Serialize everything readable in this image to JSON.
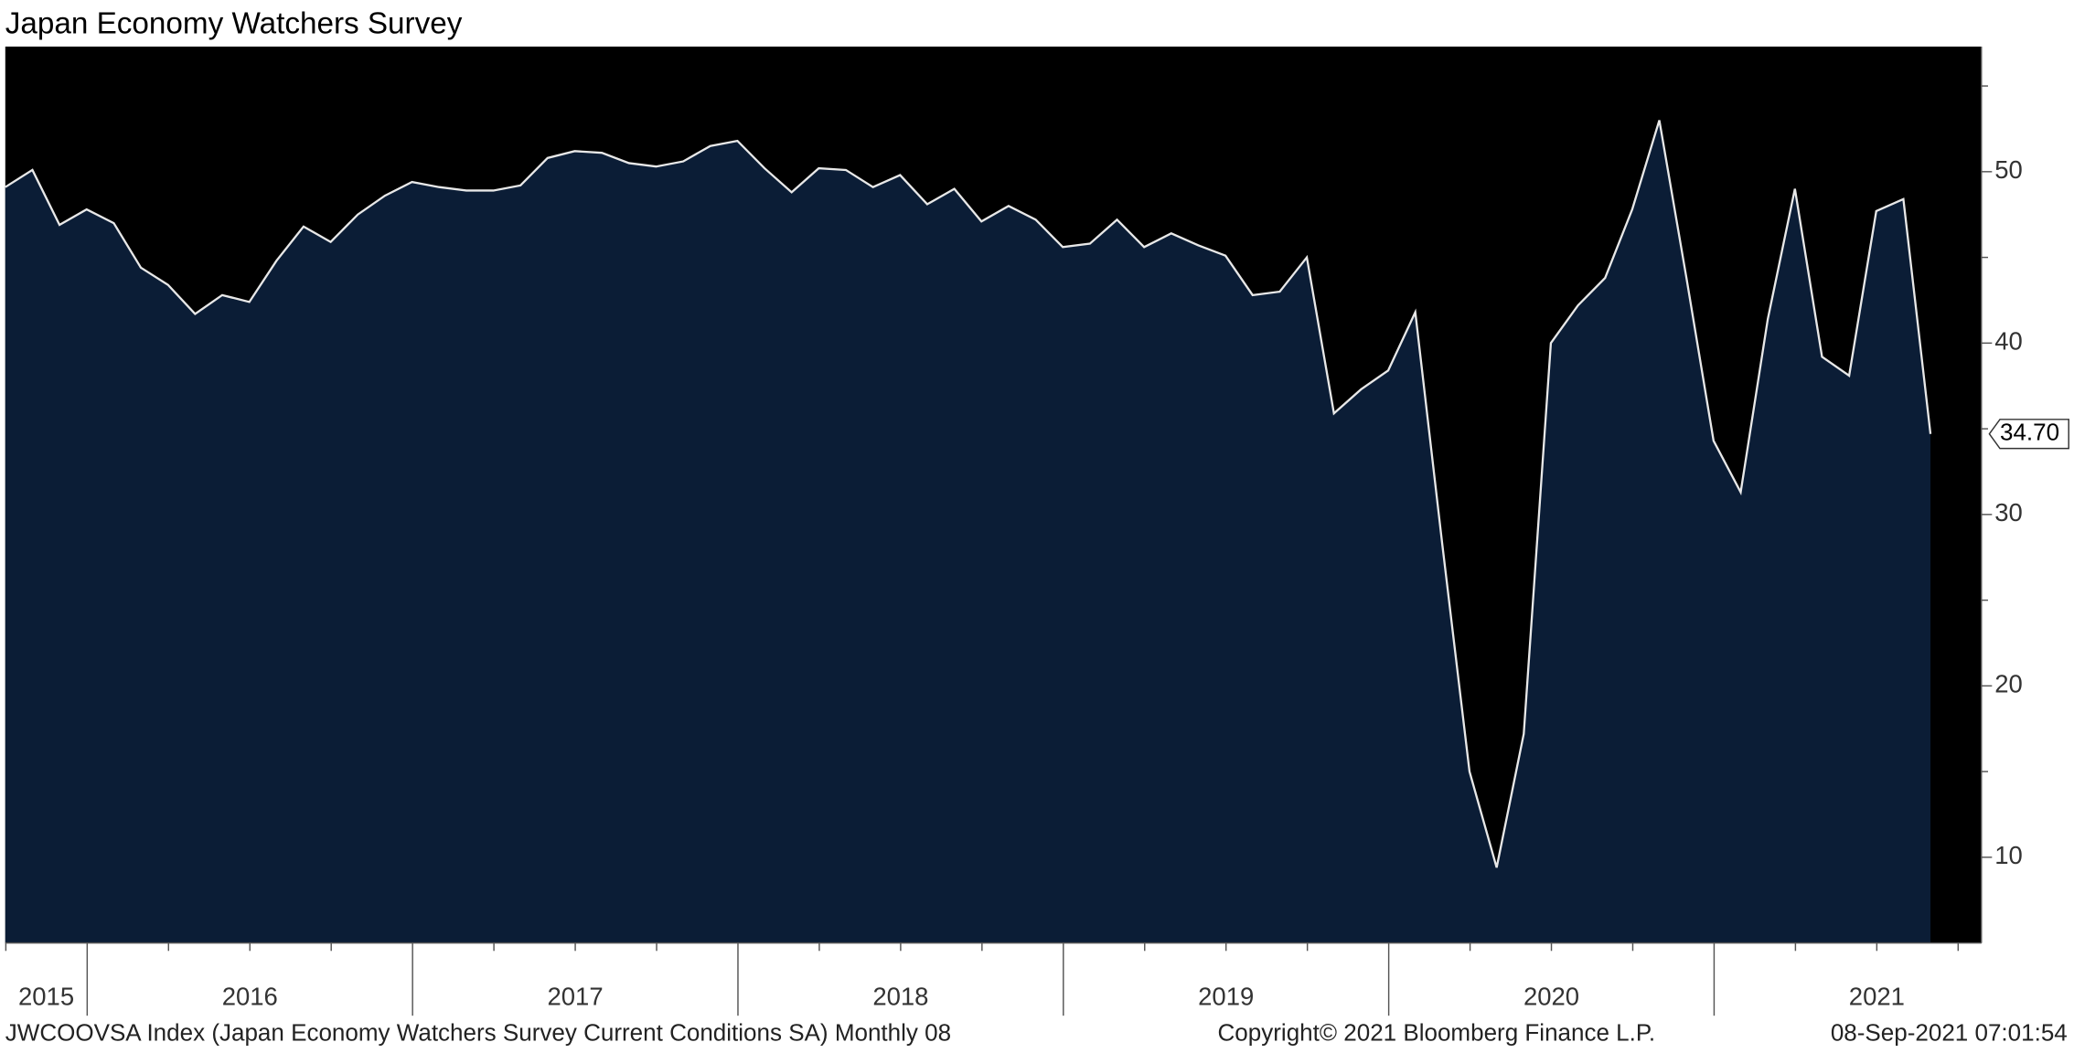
{
  "chart_data": {
    "type": "area",
    "title": "Japan Economy Watchers Survey",
    "year_labels": [
      "2015",
      "2016",
      "2017",
      "2018",
      "2019",
      "2020",
      "2021"
    ],
    "values": [
      49.1,
      50.1,
      46.9,
      47.8,
      47.0,
      44.4,
      43.4,
      41.7,
      42.8,
      42.4,
      44.8,
      46.8,
      45.9,
      47.5,
      48.6,
      49.4,
      49.1,
      48.9,
      48.9,
      49.2,
      50.8,
      51.2,
      51.1,
      50.5,
      50.3,
      50.6,
      51.5,
      51.8,
      50.2,
      48.8,
      50.2,
      50.1,
      49.1,
      49.8,
      48.1,
      49.0,
      47.1,
      48.0,
      47.2,
      45.6,
      45.8,
      47.2,
      45.6,
      46.4,
      45.7,
      45.1,
      42.8,
      43.0,
      45.0,
      35.9,
      37.3,
      38.4,
      41.8,
      28.2,
      15.0,
      9.4,
      17.2,
      40.0,
      42.2,
      43.8,
      47.8,
      53.0,
      43.8,
      34.3,
      31.3,
      41.4,
      49.0,
      39.2,
      38.1,
      47.7,
      48.4,
      34.7
    ],
    "last_value_label": "34.70",
    "fill_color": "#0b1d36",
    "line_color": "#e8e8e8",
    "background": "#000000",
    "ylim": [
      5,
      57.3
    ],
    "yticks": [
      10,
      20,
      30,
      40,
      50
    ],
    "yticks_minor": [
      15,
      25,
      35,
      45,
      55
    ],
    "footer_left": "JWCOOVSA Index (Japan Economy Watchers Survey Current Conditions SA)  Monthly 08",
    "footer_center": "Copyright© 2021 Bloomberg Finance L.P.",
    "footer_right": "08-Sep-2021 07:01:54"
  }
}
